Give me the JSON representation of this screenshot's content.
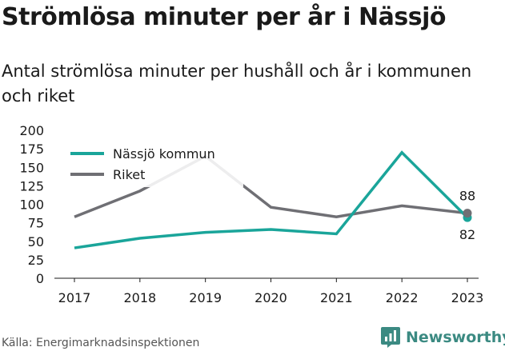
{
  "chart_data": {
    "type": "line",
    "title": "Strömlösa minuter per år i Nässjö",
    "subtitle": "Antal strömlösa minuter per hushåll och år i kommunen och riket",
    "categories": [
      "2017",
      "2018",
      "2019",
      "2020",
      "2021",
      "2022",
      "2023"
    ],
    "y_ticks": [
      "0",
      "25",
      "50",
      "75",
      "100",
      "125",
      "150",
      "175",
      "200"
    ],
    "ylim": [
      0,
      200
    ],
    "series": [
      {
        "name": "Nässjö kommun",
        "color": "#1aa59a",
        "values": [
          41,
          54,
          62,
          66,
          60,
          170,
          82
        ],
        "end_label": "82"
      },
      {
        "name": "Riket",
        "color": "#6f6f74",
        "values": [
          83,
          118,
          165,
          96,
          83,
          98,
          88
        ],
        "end_label": "88"
      }
    ],
    "legend_position": "top-left",
    "grid": false
  },
  "footer": {
    "source": "Källa: Energimarknadsinspektionen",
    "brand": "Newsworthy",
    "brand_icon": "bar-chart-icon",
    "brand_color": "#3b8a82"
  }
}
